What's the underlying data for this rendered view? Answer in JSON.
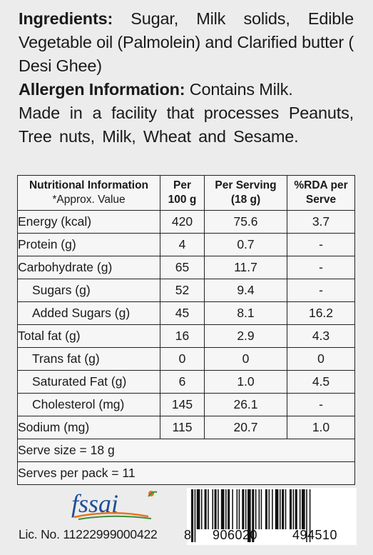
{
  "ingredients": {
    "label": "Ingredients:",
    "text": " Sugar, Milk solids, Edible Vegetable oil (Palmolein) and Clarified butter ( Desi Ghee)"
  },
  "allergen": {
    "label": "Allergen Information:",
    "text": " Contains Milk."
  },
  "facility_note": "Made in a facility that processes Peanuts, Tree nuts, Milk, Wheat and Sesame.",
  "table": {
    "header": {
      "col1_title": "Nutritional Information",
      "col1_note": "*Approx. Value",
      "col2_line1": "Per",
      "col2_line2": "100 g",
      "col3_line1": "Per Serving",
      "col3_line2": "(18 g)",
      "col4_line1": "%RDA per",
      "col4_line2": "Serve"
    },
    "rows": [
      {
        "label": "Energy (kcal)",
        "per100": "420",
        "serving": "75.6",
        "rda": "3.7"
      },
      {
        "label": "Protein (g)",
        "per100": "4",
        "serving": "0.7",
        "rda": "-"
      },
      {
        "label": "Carbohydrate (g)",
        "per100": "65",
        "serving": "11.7",
        "rda": "-"
      },
      {
        "label": "Sugars (g)",
        "per100": "52",
        "serving": "9.4",
        "rda": "-"
      },
      {
        "label": "Added Sugars (g)",
        "per100": "45",
        "serving": "8.1",
        "rda": "16.2"
      },
      {
        "label": "Total fat (g)",
        "per100": "16",
        "serving": "2.9",
        "rda": "4.3"
      },
      {
        "label": "Trans fat (g)",
        "per100": "0",
        "serving": "0",
        "rda": "0"
      },
      {
        "label": "Saturated Fat (g)",
        "per100": "6",
        "serving": "1.0",
        "rda": "4.5"
      },
      {
        "label": "Cholesterol (mg)",
        "per100": "145",
        "serving": "26.1",
        "rda": "-"
      },
      {
        "label": "Sodium (mg)",
        "per100": "115",
        "serving": "20.7",
        "rda": "1.0"
      }
    ],
    "serve_size": "Serve size = 18 g",
    "serves_per_pack": "Serves per pack = 11"
  },
  "fssai": {
    "logo_text": "fssai",
    "license": "Lic. No. 11222999000422"
  },
  "barcode": {
    "first_digit": "8",
    "left_group": "906020",
    "right_group": "494510"
  },
  "colors": {
    "fssai_blue": "#1f4e9a",
    "fssai_orange": "#e8731c",
    "fssai_green": "#3a8f3a"
  }
}
